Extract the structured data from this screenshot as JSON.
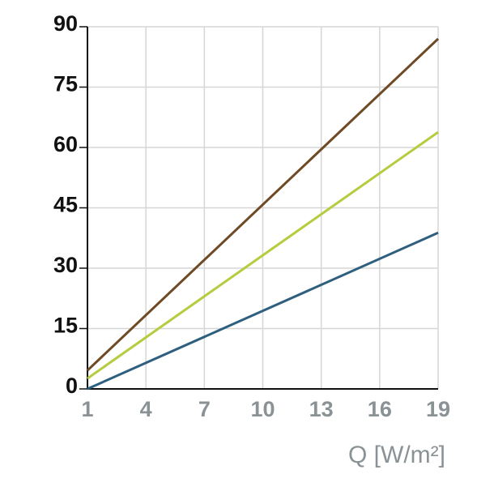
{
  "chart_data": {
    "type": "line",
    "x_label": "Q [W/m²]",
    "x": [
      1,
      19
    ],
    "series": [
      {
        "color": "#6e4a26",
        "values": [
          4.6,
          87
        ]
      },
      {
        "color": "#b5cc3e",
        "values": [
          2.6,
          63.8
        ]
      },
      {
        "color": "#2f5f7e",
        "values": [
          0,
          38.8
        ]
      }
    ],
    "xlim": [
      1,
      19
    ],
    "xticks": [
      1,
      4,
      7,
      10,
      13,
      16,
      19
    ],
    "ylim": [
      0,
      90
    ],
    "yticks": [
      0,
      15,
      30,
      45,
      60,
      75,
      90
    ],
    "grid": true
  }
}
